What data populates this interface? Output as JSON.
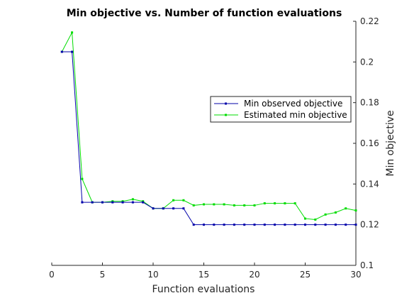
{
  "chart_data": {
    "type": "line",
    "title": "Min objective vs. Number of function evaluations",
    "xlabel": "Function evaluations",
    "ylabel": "Min objective",
    "xlim": [
      0,
      30
    ],
    "ylim": [
      0.1,
      0.22
    ],
    "x_ticks": [
      "0",
      "5",
      "10",
      "15",
      "20",
      "25",
      "30"
    ],
    "y_ticks": [
      "0.1",
      "0.12",
      "0.14",
      "0.16",
      "0.18",
      "0.2",
      "0.22"
    ],
    "y_axis_side": "right",
    "grid": false,
    "legend_position": "top-right",
    "x": [
      1,
      2,
      3,
      4,
      5,
      6,
      7,
      8,
      9,
      10,
      11,
      12,
      13,
      14,
      15,
      16,
      17,
      18,
      19,
      20,
      21,
      22,
      23,
      24,
      25,
      26,
      27,
      28,
      29,
      30
    ],
    "series": [
      {
        "name": "Min observed objective",
        "color": "#0000aa",
        "marker": "square",
        "values": [
          0.205,
          0.205,
          0.131,
          0.131,
          0.131,
          0.131,
          0.131,
          0.131,
          0.131,
          0.128,
          0.128,
          0.128,
          0.128,
          0.12,
          0.12,
          0.12,
          0.12,
          0.12,
          0.12,
          0.12,
          0.12,
          0.12,
          0.12,
          0.12,
          0.12,
          0.12,
          0.12,
          0.12,
          0.12,
          0.12
        ]
      },
      {
        "name": "Estimated min objective",
        "color": "#00dd00",
        "marker": "square",
        "values": [
          0.205,
          0.2145,
          0.1425,
          0.131,
          0.131,
          0.1315,
          0.1315,
          0.1325,
          0.1315,
          0.128,
          0.128,
          0.132,
          0.132,
          0.1295,
          0.13,
          0.13,
          0.13,
          0.1295,
          0.1295,
          0.1295,
          0.1305,
          0.1305,
          0.1305,
          0.1305,
          0.123,
          0.1225,
          0.125,
          0.126,
          0.128,
          0.127
        ]
      }
    ]
  }
}
